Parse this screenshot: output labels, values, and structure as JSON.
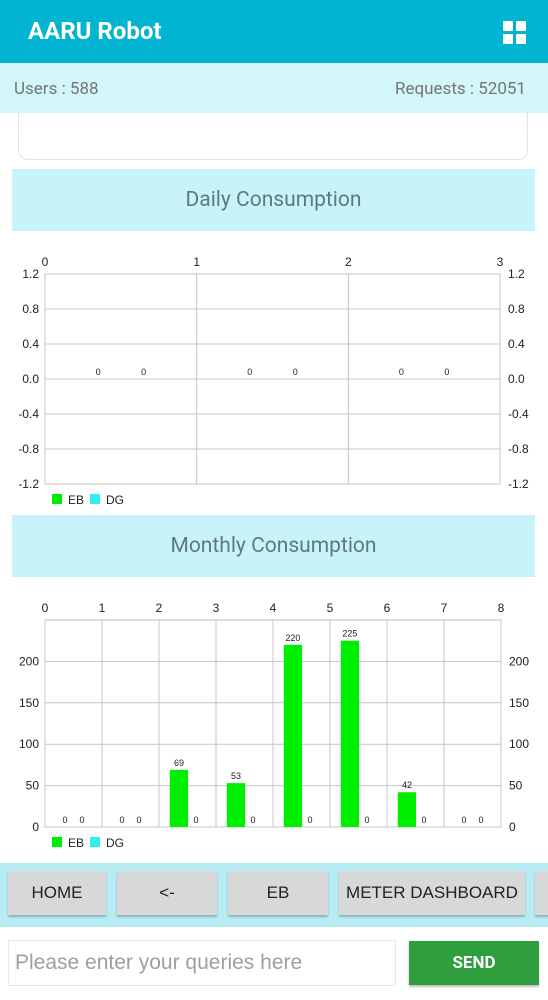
{
  "app": {
    "title": "AARU Robot",
    "menu_icon": "grid-icon"
  },
  "stats": {
    "users": "Users : 588",
    "requests": "Requests : 52051"
  },
  "sections": {
    "daily_title": "Daily Consumption",
    "monthly_title": "Monthly Consumption"
  },
  "chart_data": [
    {
      "type": "bar",
      "title": "Daily Consumption",
      "x_ticks": [
        "0",
        "1",
        "2",
        "3"
      ],
      "y_ticks": [
        "1.2",
        "0.8",
        "0.4",
        "0.0",
        "-0.4",
        "-0.8",
        "-1.2"
      ],
      "ylim": [
        -1.2,
        1.2
      ],
      "xlim": [
        0,
        3
      ],
      "grid": true,
      "legend": "bottom-left",
      "colors": {
        "EB": "#00ee00",
        "DG": "#33eeee"
      },
      "series": [
        {
          "name": "EB",
          "x": [
            0,
            1,
            2
          ],
          "values": [
            0,
            0,
            0
          ]
        },
        {
          "name": "DG",
          "x": [
            0,
            1,
            2
          ],
          "values": [
            0,
            0,
            0
          ]
        }
      ],
      "data_labels": [
        "0",
        "0",
        "0",
        "0",
        "0",
        "0"
      ]
    },
    {
      "type": "bar",
      "title": "Monthly Consumption",
      "x_ticks": [
        "0",
        "1",
        "2",
        "3",
        "4",
        "5",
        "6",
        "7",
        "8"
      ],
      "y_ticks": [
        "200",
        "150",
        "100",
        "50",
        "0"
      ],
      "ylim": [
        0,
        250
      ],
      "xlim": [
        0,
        8
      ],
      "grid": true,
      "legend": "bottom-left",
      "colors": {
        "EB": "#00ee00",
        "DG": "#33eeee"
      },
      "series": [
        {
          "name": "EB",
          "x": [
            0,
            1,
            2,
            3,
            4,
            5,
            6,
            7
          ],
          "values": [
            0,
            0,
            69,
            53,
            220,
            225,
            42,
            0
          ]
        },
        {
          "name": "DG",
          "x": [
            0,
            1,
            2,
            3,
            4,
            5,
            6,
            7
          ],
          "values": [
            0,
            0,
            0,
            0,
            0,
            0,
            0,
            0
          ]
        }
      ]
    }
  ],
  "buttons": [
    {
      "label": "HOME"
    },
    {
      "label": "<-"
    },
    {
      "label": "EB"
    },
    {
      "label": "METER DASHBOARD"
    }
  ],
  "query": {
    "placeholder": "Please enter your queries here",
    "send_label": "SEND"
  }
}
